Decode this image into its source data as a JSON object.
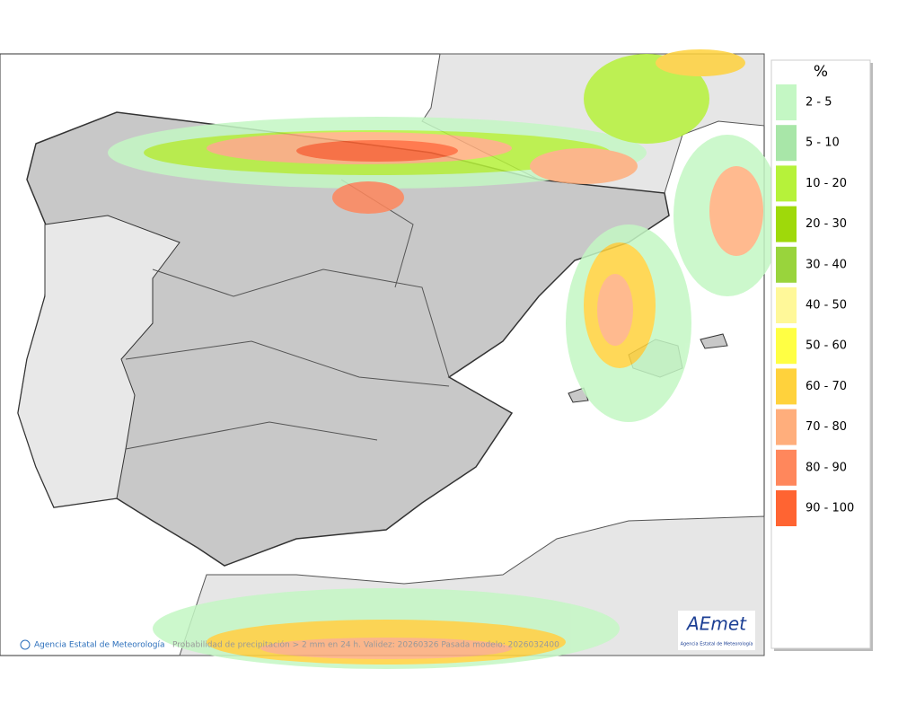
{
  "legend": {
    "title": "%",
    "items": [
      {
        "label": "2 - 5",
        "color": "#c4f7c4"
      },
      {
        "label": "5 - 10",
        "color": "#a8e6a8"
      },
      {
        "label": "10 - 20",
        "color": "#b6f23a"
      },
      {
        "label": "20 - 30",
        "color": "#9fd90a"
      },
      {
        "label": "30 - 40",
        "color": "#99d43c"
      },
      {
        "label": "40 - 50",
        "color": "#fff899"
      },
      {
        "label": "50 - 60",
        "color": "#ffff44"
      },
      {
        "label": "60 - 70",
        "color": "#ffd23c"
      },
      {
        "label": "70 - 80",
        "color": "#ffae7c"
      },
      {
        "label": "80 - 90",
        "color": "#ff875c"
      },
      {
        "label": "90 - 100",
        "color": "#ff6432"
      }
    ]
  },
  "footer": {
    "credit": "Agencia Estatal de Meteorología",
    "caption": "Probabilidad de precipitación > 2 mm en 24 h. Validez: 20260326 Pasada modelo: 2026032400"
  },
  "logo": {
    "name": "AEmet",
    "subtitle": "Agencia Estatal de Meteorología"
  }
}
